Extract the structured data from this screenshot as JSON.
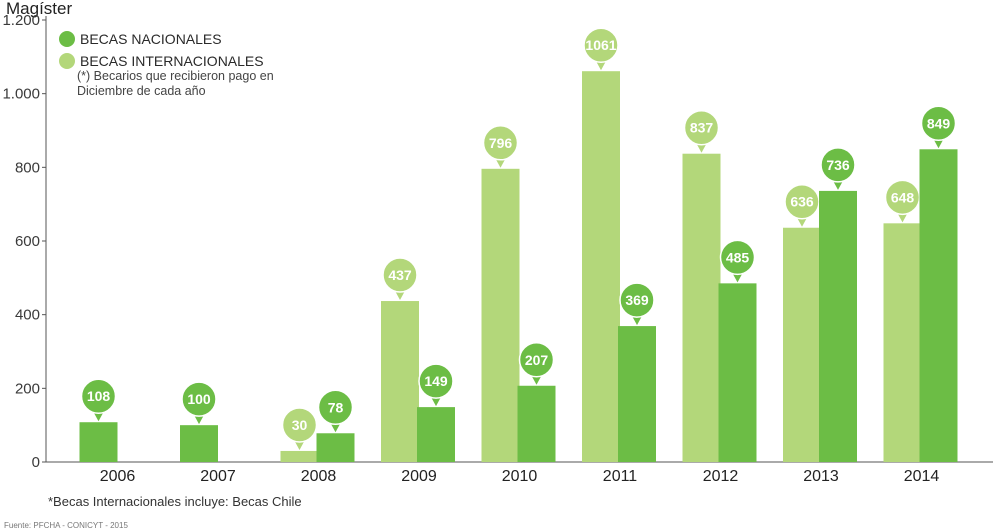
{
  "chart_data": {
    "type": "bar",
    "title": "Magíster",
    "categories": [
      "2006",
      "2007",
      "2008",
      "2009",
      "2010",
      "2011",
      "2012",
      "2013",
      "2014"
    ],
    "series": [
      {
        "name": "BECAS INTERNACIONALES",
        "color": "#b3d77a",
        "values": [
          null,
          null,
          30,
          437,
          796,
          1061,
          837,
          636,
          648
        ]
      },
      {
        "name": "BECAS NACIONALES",
        "color": "#6cbd45",
        "values": [
          108,
          100,
          78,
          149,
          207,
          369,
          485,
          736,
          849
        ]
      }
    ],
    "ylim": [
      0,
      1200
    ],
    "yticks": [
      0,
      200,
      400,
      600,
      800,
      1000,
      1200
    ],
    "ytick_labels": [
      "0",
      "200",
      "400",
      "600",
      "800",
      "1.000",
      "1.200"
    ],
    "legend_note_lines": [
      "(*) Becarios que recibieron pago en",
      "Diciembre de cada año"
    ],
    "legend_position": "top-left",
    "grid": false
  },
  "footnote": "*Becas Internacionales incluye: Becas Chile",
  "source": "Fuente: PFCHA - CONICYT - 2015"
}
